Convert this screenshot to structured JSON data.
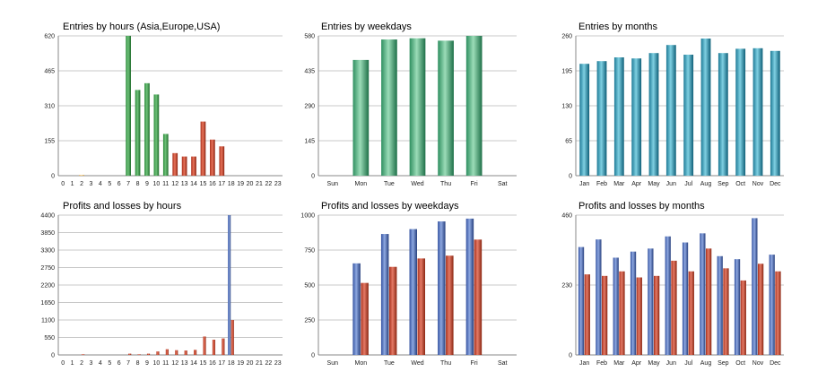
{
  "colors": {
    "green": [
      "#2b8a3a",
      "#6fc27a",
      "#1f6d2b"
    ],
    "red": [
      "#a8301c",
      "#e8735a",
      "#8c2412"
    ],
    "orange": [
      "#e8a52a",
      "#f7d08a",
      "#c88a1a"
    ],
    "mint": [
      "#2f8f60",
      "#9bdcb8",
      "#1e7048"
    ],
    "teal": [
      "#1e7a96",
      "#7fd0e2",
      "#0f5f78"
    ],
    "blue": [
      "#3452a0",
      "#8ea8e0",
      "#27407e"
    ],
    "salmon": [
      "#a8301c",
      "#e47a66",
      "#8a2612"
    ]
  },
  "chart_data": [
    {
      "id": "c1",
      "type": "bar",
      "title": "Entries by hours (Asia,Europe,USA)",
      "categories": [
        "0",
        "1",
        "2",
        "3",
        "4",
        "5",
        "6",
        "7",
        "8",
        "9",
        "10",
        "11",
        "12",
        "13",
        "14",
        "15",
        "16",
        "17",
        "18",
        "19",
        "20",
        "21",
        "22",
        "23"
      ],
      "values": [
        0,
        0,
        3,
        0,
        0,
        0,
        0,
        620,
        380,
        410,
        360,
        185,
        100,
        85,
        85,
        240,
        160,
        130,
        0,
        0,
        0,
        0,
        0,
        0
      ],
      "yticks": [
        "0",
        "155",
        "310",
        "465",
        "620"
      ],
      "ylim": [
        0,
        620
      ],
      "bar_colors": [
        "green",
        "green",
        "orange",
        "green",
        "green",
        "green",
        "green",
        "green",
        "green",
        "green",
        "green",
        "green",
        "red",
        "red",
        "red",
        "red",
        "red",
        "red",
        "green",
        "green",
        "green",
        "green",
        "green",
        "green"
      ]
    },
    {
      "id": "c2",
      "type": "bar",
      "title": "Entries by weekdays",
      "categories": [
        "Sun",
        "Mon",
        "Tue",
        "Wed",
        "Thu",
        "Fri",
        "Sat"
      ],
      "values": [
        0,
        480,
        565,
        570,
        560,
        580,
        0
      ],
      "yticks": [
        "0",
        "145",
        "290",
        "435",
        "580"
      ],
      "ylim": [
        0,
        580
      ],
      "bar_color": "mint"
    },
    {
      "id": "c3",
      "type": "bar",
      "title": "Entries by months",
      "categories": [
        "Jan",
        "Feb",
        "Mar",
        "Apr",
        "May",
        "Jun",
        "Jul",
        "Aug",
        "Sep",
        "Oct",
        "Nov",
        "Dec"
      ],
      "values": [
        208,
        213,
        220,
        218,
        228,
        243,
        225,
        255,
        228,
        236,
        237,
        232
      ],
      "yticks": [
        "0",
        "65",
        "130",
        "195",
        "260"
      ],
      "ylim": [
        0,
        260
      ],
      "bar_color": "teal"
    },
    {
      "id": "c4",
      "type": "bar",
      "title": "Profits and losses by hours",
      "categories": [
        "0",
        "1",
        "2",
        "3",
        "4",
        "5",
        "6",
        "7",
        "8",
        "9",
        "10",
        "11",
        "12",
        "13",
        "14",
        "15",
        "16",
        "17",
        "18",
        "19",
        "20",
        "21",
        "22",
        "23"
      ],
      "series": [
        {
          "name": "profits",
          "values": [
            0,
            0,
            0,
            0,
            0,
            0,
            0,
            0,
            0,
            0,
            0,
            0,
            0,
            0,
            0,
            0,
            0,
            0,
            4400,
            0,
            0,
            0,
            0,
            0
          ],
          "color": "blue"
        },
        {
          "name": "losses",
          "values": [
            0,
            0,
            20,
            0,
            0,
            0,
            0,
            40,
            20,
            40,
            110,
            180,
            150,
            140,
            160,
            580,
            480,
            520,
            1100,
            0,
            0,
            0,
            0,
            0
          ],
          "color": "red"
        }
      ],
      "yticks": [
        "0",
        "550",
        "1100",
        "1650",
        "2200",
        "2750",
        "3300",
        "3850",
        "4400"
      ],
      "ylim": [
        0,
        4400
      ]
    },
    {
      "id": "c5",
      "type": "bar",
      "title": "Profits and losses by weekdays",
      "categories": [
        "Sun",
        "Mon",
        "Tue",
        "Wed",
        "Thu",
        "Fri",
        "Sat"
      ],
      "series": [
        {
          "name": "profits",
          "values": [
            0,
            655,
            865,
            900,
            955,
            975,
            0
          ],
          "color": "blue"
        },
        {
          "name": "losses",
          "values": [
            0,
            515,
            630,
            690,
            710,
            825,
            0
          ],
          "color": "salmon"
        }
      ],
      "yticks": [
        "0",
        "250",
        "500",
        "750",
        "1000"
      ],
      "ylim": [
        0,
        1000
      ]
    },
    {
      "id": "c6",
      "type": "bar",
      "title": "Profits and losses by months",
      "categories": [
        "Jan",
        "Feb",
        "Mar",
        "Apr",
        "May",
        "Jun",
        "Jul",
        "Aug",
        "Sep",
        "Oct",
        "Nov",
        "Dec"
      ],
      "series": [
        {
          "name": "profits",
          "values": [
            355,
            380,
            320,
            340,
            350,
            390,
            370,
            400,
            325,
            315,
            450,
            330
          ],
          "color": "blue"
        },
        {
          "name": "losses",
          "values": [
            265,
            260,
            275,
            255,
            260,
            310,
            275,
            350,
            285,
            245,
            300,
            275
          ],
          "color": "salmon"
        }
      ],
      "yticks": [
        "0",
        "230",
        "460"
      ],
      "ylim": [
        0,
        460
      ]
    }
  ]
}
